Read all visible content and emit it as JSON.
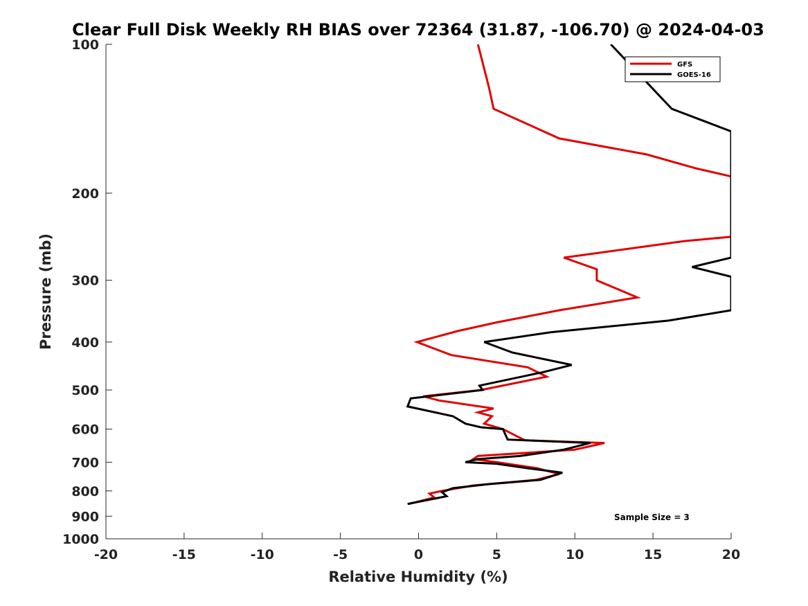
{
  "chart_data": {
    "type": "line",
    "title": "Clear Full Disk Weekly RH BIAS over 72364 (31.87, -106.70) @ 2024-04-03",
    "xlabel": "Relative Humidity (%)",
    "ylabel": "Pressure (mb)",
    "xlim": [
      -20,
      20
    ],
    "ylim": [
      100,
      1000
    ],
    "y_scale": "log",
    "y_reversed": true,
    "x_ticks": [
      "-20",
      "-15",
      "-10",
      "-5",
      "0",
      "5",
      "10",
      "15",
      "20"
    ],
    "y_ticks": [
      "100",
      "200",
      "300",
      "400",
      "500",
      "600",
      "700",
      "800",
      "900",
      "1000"
    ],
    "grid": false,
    "legend_position": "top-right",
    "series": [
      {
        "name": "GFS",
        "color": "#e00000",
        "x": [
          -0.6,
          1.0,
          0.7,
          1.5,
          3.5,
          7.5,
          9.0,
          7.6,
          5.0,
          3.5,
          3.8,
          7.0,
          10.0,
          11.9,
          6.8,
          5.4,
          4.2,
          4.7,
          3.8,
          4.8,
          1.3,
          0.3,
          4.0,
          8.2,
          7.0,
          2.1,
          -0.1,
          2.5,
          5.0,
          9.0,
          14.0,
          11.4,
          11.4,
          9.3,
          17.0,
          20.0,
          20.0,
          17.7,
          14.6,
          9.0,
          4.8,
          4.5,
          3.8
        ],
        "y": [
          850,
          825,
          810,
          800,
          780,
          760,
          740,
          720,
          700,
          690,
          680,
          670,
          660,
          640,
          632,
          600,
          585,
          565,
          555,
          545,
          525,
          515,
          500,
          470,
          450,
          425,
          400,
          380,
          365,
          345,
          325,
          300,
          285,
          270,
          250,
          245,
          185,
          178,
          167,
          155,
          135,
          122,
          100
        ]
      },
      {
        "name": "GOES-16",
        "color": "#000000",
        "x": [
          -0.7,
          1.8,
          1.5,
          2.2,
          4.5,
          7.8,
          9.2,
          7.0,
          5.0,
          3.0,
          3.8,
          6.5,
          9.3,
          11.0,
          5.7,
          5.4,
          4.0,
          3.0,
          2.2,
          -0.7,
          -0.5,
          4.1,
          3.9,
          8.0,
          9.8,
          6.0,
          4.2,
          8.5,
          16.0,
          20.0,
          20.0,
          17.5,
          20.0,
          20.0,
          16.2,
          12.3
        ],
        "y": [
          850,
          820,
          805,
          790,
          775,
          760,
          735,
          720,
          705,
          700,
          690,
          680,
          660,
          640,
          630,
          600,
          595,
          585,
          565,
          540,
          520,
          500,
          490,
          460,
          445,
          420,
          400,
          382,
          362,
          345,
          295,
          282,
          270,
          150,
          135,
          100
        ]
      }
    ],
    "annotations": [
      "Sample Size = 3"
    ]
  }
}
